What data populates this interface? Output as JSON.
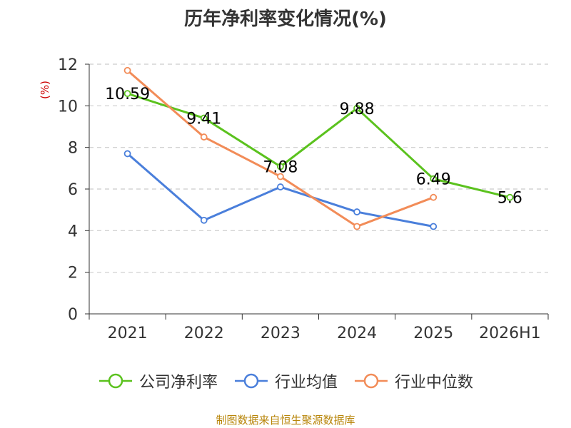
{
  "chart_data": {
    "type": "line",
    "title": "历年净利率变化情况(%)",
    "ylabel": "(%)",
    "categories": [
      "2021",
      "2022",
      "2023",
      "2024",
      "2025",
      "2026H1"
    ],
    "ylim": [
      0,
      12
    ],
    "yticks": [
      0,
      2,
      4,
      6,
      8,
      10,
      12
    ],
    "grid": "horizontal-dashed",
    "legend_position": "bottom",
    "series": [
      {
        "name": "公司净利率",
        "values": [
          10.59,
          9.41,
          7.08,
          9.88,
          6.49,
          5.6
        ],
        "labels": [
          "10.59",
          "9.41",
          "7.08",
          "9.88",
          "6.49",
          "5.6"
        ],
        "color": "#5bc21e"
      },
      {
        "name": "行业均值",
        "values": [
          7.7,
          4.5,
          6.1,
          4.9,
          4.2,
          null
        ],
        "color": "#4a7fdb"
      },
      {
        "name": "行业中位数",
        "values": [
          11.7,
          8.5,
          6.6,
          4.2,
          5.6,
          null
        ],
        "color": "#f28c58"
      }
    ]
  },
  "source": "制图数据来自恒生聚源数据库",
  "colors": {
    "ylabel": "#cc0000",
    "axis": "#333333",
    "grid": "#cccccc",
    "source": "#b8860b"
  }
}
